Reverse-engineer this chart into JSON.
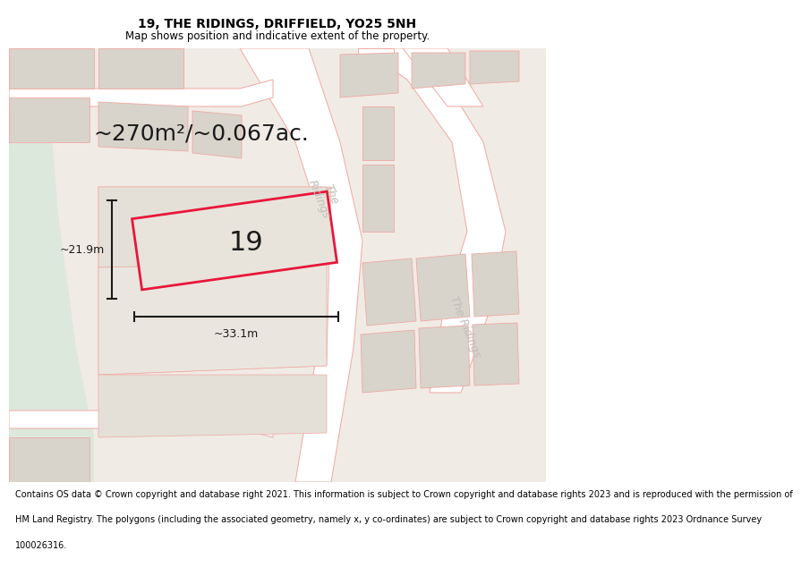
{
  "title": "19, THE RIDINGS, DRIFFIELD, YO25 5NH",
  "subtitle": "Map shows position and indicative extent of the property.",
  "footnote_lines": [
    "Contains OS data © Crown copyright and database right 2021. This information is subject to Crown copyright and database rights 2023 and is reproduced with the permission of",
    "HM Land Registry. The polygons (including the associated geometry, namely x, y co-ordinates) are subject to Crown copyright and database rights 2023 Ordnance Survey",
    "100026316."
  ],
  "area_label": "~270m²/~0.067ac.",
  "number_label": "19",
  "dim_width_label": "~33.1m",
  "dim_height_label": "~21.9m",
  "road_label_upper": "The\nRidings",
  "road_label_lower": "The Ridings",
  "map_bg": "#f0ebe5",
  "green_bg": "#dde8dd",
  "building_fill": "#d8d4cc",
  "building_edge": "#f0a8a0",
  "road_fill": "#ffffff",
  "road_edge": "#f0a8a0",
  "plot_fill": "#e8e4dc",
  "plot_edge": "#e8173a",
  "dim_color": "#1a1a1a",
  "label_color": "#1a1a1a",
  "road_text_color": "#c0bdb8",
  "title_fontsize": 10,
  "subtitle_fontsize": 8.5,
  "footnote_fontsize": 7,
  "area_fontsize": 18,
  "number_fontsize": 22,
  "dim_fontsize": 9,
  "road_fontsize": 9
}
